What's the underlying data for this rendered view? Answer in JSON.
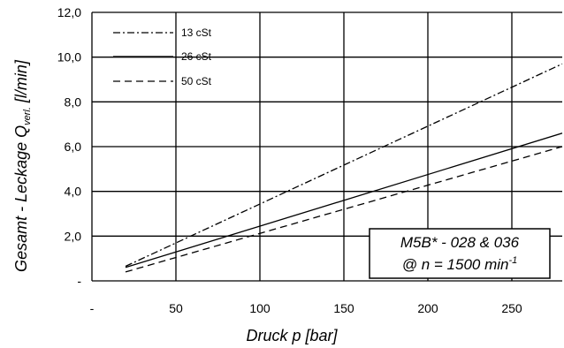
{
  "chart_data": {
    "type": "line",
    "xlabel": "Druck p [bar]",
    "ylabel_main": "Gesamt - Leckage Q",
    "ylabel_sub": "verl.",
    "ylabel_unit": " [l/min]",
    "xlim": [
      0,
      280
    ],
    "ylim": [
      0,
      12
    ],
    "x_ticks": [
      {
        "value": 0,
        "label": "-"
      },
      {
        "value": 50,
        "label": "50"
      },
      {
        "value": 100,
        "label": "100"
      },
      {
        "value": 150,
        "label": "150"
      },
      {
        "value": 200,
        "label": "200"
      },
      {
        "value": 250,
        "label": "250"
      }
    ],
    "y_ticks": [
      {
        "value": 0,
        "label": "-"
      },
      {
        "value": 2,
        "label": "2,0"
      },
      {
        "value": 4,
        "label": "4,0"
      },
      {
        "value": 6,
        "label": "6,0"
      },
      {
        "value": 8,
        "label": "8,0"
      },
      {
        "value": 10,
        "label": "10,0"
      },
      {
        "value": 12,
        "label": "12,0"
      }
    ],
    "grid": true,
    "series": [
      {
        "name": "13 cSt",
        "style": "dash-dot",
        "x": [
          20,
          280
        ],
        "y": [
          0.65,
          9.7
        ]
      },
      {
        "name": "26 cSt",
        "style": "solid",
        "x": [
          20,
          280
        ],
        "y": [
          0.6,
          6.6
        ]
      },
      {
        "name": "50 cSt",
        "style": "dashed",
        "x": [
          20,
          280
        ],
        "y": [
          0.4,
          6.0
        ]
      }
    ],
    "legend_position": "top-left",
    "annotation": {
      "line1": "M5B* - 028 & 036",
      "line2_prefix": "@ n = 1500 min",
      "line2_sup": "-1",
      "position": "bottom-right"
    }
  }
}
